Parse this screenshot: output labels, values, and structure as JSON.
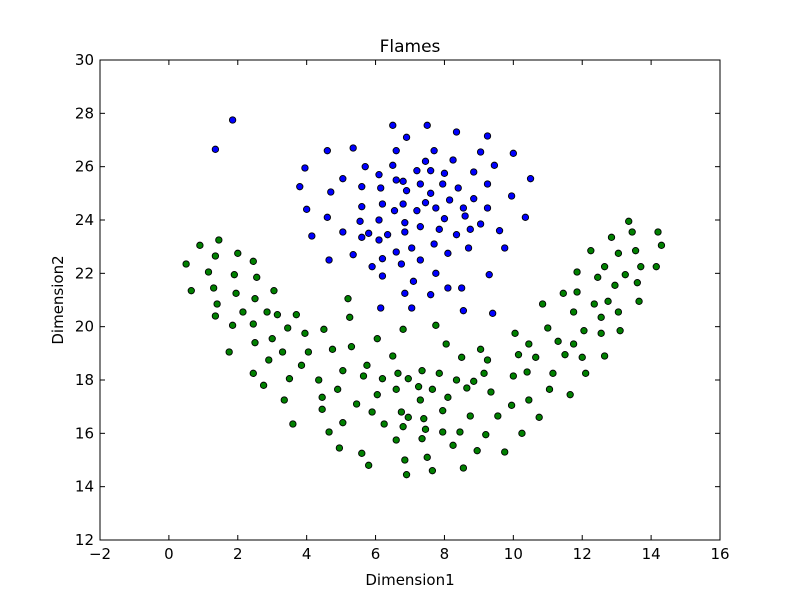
{
  "chart_data": {
    "type": "scatter",
    "title": "Flames",
    "xlabel": "Dimension1",
    "ylabel": "Dimension2",
    "xlim": [
      -2,
      16
    ],
    "ylim": [
      12,
      30
    ],
    "xticks": [
      "−2",
      "0",
      "2",
      "4",
      "6",
      "8",
      "10",
      "12",
      "14",
      "16"
    ],
    "yticks": [
      "12",
      "14",
      "16",
      "18",
      "20",
      "22",
      "24",
      "26",
      "28",
      "30"
    ],
    "grid": false,
    "series": [
      {
        "color": "#0000ff",
        "points": [
          [
            1.85,
            27.75
          ],
          [
            1.35,
            26.65
          ],
          [
            6.5,
            27.55
          ],
          [
            7.5,
            27.55
          ],
          [
            8.35,
            27.3
          ],
          [
            6.9,
            27.1
          ],
          [
            9.25,
            27.15
          ],
          [
            4.6,
            26.6
          ],
          [
            5.35,
            26.7
          ],
          [
            6.6,
            26.6
          ],
          [
            7.7,
            26.6
          ],
          [
            9.05,
            26.55
          ],
          [
            10.0,
            26.5
          ],
          [
            3.95,
            25.95
          ],
          [
            5.7,
            26.0
          ],
          [
            6.5,
            26.05
          ],
          [
            7.45,
            26.2
          ],
          [
            8.25,
            26.25
          ],
          [
            9.45,
            26.05
          ],
          [
            6.1,
            25.7
          ],
          [
            6.8,
            25.45
          ],
          [
            7.2,
            25.85
          ],
          [
            7.6,
            25.85
          ],
          [
            8.0,
            25.75
          ],
          [
            8.85,
            25.8
          ],
          [
            10.5,
            25.55
          ],
          [
            3.8,
            25.25
          ],
          [
            4.7,
            25.05
          ],
          [
            5.05,
            25.55
          ],
          [
            5.6,
            25.25
          ],
          [
            6.15,
            25.2
          ],
          [
            6.6,
            25.5
          ],
          [
            6.9,
            25.1
          ],
          [
            7.3,
            25.35
          ],
          [
            7.6,
            25.0
          ],
          [
            7.95,
            25.35
          ],
          [
            8.4,
            25.2
          ],
          [
            9.25,
            25.35
          ],
          [
            9.95,
            24.9
          ],
          [
            4.0,
            24.4
          ],
          [
            4.6,
            24.1
          ],
          [
            5.6,
            24.5
          ],
          [
            6.2,
            24.6
          ],
          [
            6.55,
            24.35
          ],
          [
            6.8,
            24.6
          ],
          [
            7.45,
            24.65
          ],
          [
            7.2,
            24.35
          ],
          [
            7.75,
            24.45
          ],
          [
            8.15,
            24.75
          ],
          [
            8.55,
            24.45
          ],
          [
            8.85,
            24.8
          ],
          [
            9.25,
            24.45
          ],
          [
            10.35,
            24.1
          ],
          [
            5.55,
            23.95
          ],
          [
            6.1,
            24.0
          ],
          [
            6.85,
            23.9
          ],
          [
            7.3,
            23.75
          ],
          [
            8.0,
            24.05
          ],
          [
            8.6,
            24.15
          ],
          [
            9.05,
            23.85
          ],
          [
            9.6,
            23.6
          ],
          [
            5.05,
            23.55
          ],
          [
            5.8,
            23.5
          ],
          [
            6.35,
            23.45
          ],
          [
            6.85,
            23.55
          ],
          [
            7.85,
            23.65
          ],
          [
            8.35,
            23.45
          ],
          [
            8.75,
            23.65
          ],
          [
            4.15,
            23.4
          ],
          [
            5.6,
            23.35
          ],
          [
            6.1,
            23.25
          ],
          [
            7.05,
            22.95
          ],
          [
            7.7,
            23.1
          ],
          [
            8.7,
            22.95
          ],
          [
            9.75,
            22.95
          ],
          [
            5.35,
            22.7
          ],
          [
            6.2,
            22.55
          ],
          [
            6.6,
            22.8
          ],
          [
            7.3,
            22.5
          ],
          [
            8.1,
            22.75
          ],
          [
            4.65,
            22.5
          ],
          [
            5.9,
            22.25
          ],
          [
            6.75,
            22.35
          ],
          [
            7.75,
            22.0
          ],
          [
            9.3,
            21.95
          ],
          [
            6.2,
            21.9
          ],
          [
            7.1,
            21.7
          ],
          [
            8.1,
            21.45
          ],
          [
            6.85,
            21.25
          ],
          [
            7.6,
            21.2
          ],
          [
            8.5,
            21.45
          ],
          [
            6.15,
            20.7
          ],
          [
            7.05,
            20.7
          ],
          [
            8.55,
            20.6
          ],
          [
            9.4,
            20.5
          ]
        ]
      },
      {
        "color": "#008000",
        "points": [
          [
            0.5,
            22.35
          ],
          [
            0.65,
            21.35
          ],
          [
            0.9,
            23.05
          ],
          [
            1.15,
            22.05
          ],
          [
            1.3,
            21.45
          ],
          [
            1.35,
            20.4
          ],
          [
            1.4,
            20.85
          ],
          [
            1.45,
            23.25
          ],
          [
            1.35,
            22.65
          ],
          [
            1.75,
            19.05
          ],
          [
            1.85,
            20.05
          ],
          [
            1.9,
            21.95
          ],
          [
            1.95,
            21.25
          ],
          [
            2.0,
            22.75
          ],
          [
            2.15,
            20.55
          ],
          [
            2.45,
            22.45
          ],
          [
            2.55,
            21.85
          ],
          [
            2.5,
            21.05
          ],
          [
            2.45,
            20.1
          ],
          [
            2.5,
            19.4
          ],
          [
            2.45,
            18.25
          ],
          [
            2.75,
            17.8
          ],
          [
            2.85,
            20.55
          ],
          [
            2.9,
            18.75
          ],
          [
            3.0,
            19.55
          ],
          [
            3.05,
            21.35
          ],
          [
            3.15,
            20.45
          ],
          [
            3.3,
            19.05
          ],
          [
            3.35,
            17.25
          ],
          [
            3.5,
            18.05
          ],
          [
            3.45,
            19.95
          ],
          [
            3.6,
            16.35
          ],
          [
            3.7,
            20.45
          ],
          [
            3.85,
            18.55
          ],
          [
            3.95,
            19.75
          ],
          [
            4.05,
            19.05
          ],
          [
            4.35,
            18.0
          ],
          [
            4.45,
            17.35
          ],
          [
            4.45,
            16.9
          ],
          [
            4.5,
            19.9
          ],
          [
            4.65,
            16.05
          ],
          [
            4.75,
            19.15
          ],
          [
            4.9,
            17.65
          ],
          [
            5.05,
            18.35
          ],
          [
            5.05,
            16.4
          ],
          [
            4.95,
            15.45
          ],
          [
            5.2,
            21.05
          ],
          [
            5.25,
            20.35
          ],
          [
            5.3,
            19.25
          ],
          [
            5.45,
            17.1
          ],
          [
            5.6,
            15.25
          ],
          [
            5.65,
            18.15
          ],
          [
            5.75,
            18.55
          ],
          [
            5.8,
            14.8
          ],
          [
            5.9,
            16.8
          ],
          [
            6.05,
            19.55
          ],
          [
            6.05,
            17.45
          ],
          [
            6.2,
            18.05
          ],
          [
            6.25,
            16.35
          ],
          [
            6.5,
            18.9
          ],
          [
            6.6,
            17.65
          ],
          [
            6.6,
            15.75
          ],
          [
            6.65,
            18.25
          ],
          [
            6.75,
            16.8
          ],
          [
            6.8,
            16.25
          ],
          [
            6.8,
            19.9
          ],
          [
            6.85,
            15.0
          ],
          [
            6.95,
            18.05
          ],
          [
            6.95,
            16.6
          ],
          [
            6.9,
            14.45
          ],
          [
            7.25,
            17.75
          ],
          [
            7.3,
            17.25
          ],
          [
            7.35,
            18.35
          ],
          [
            7.4,
            16.55
          ],
          [
            7.45,
            16.15
          ],
          [
            7.35,
            15.8
          ],
          [
            7.5,
            15.1
          ],
          [
            7.65,
            17.65
          ],
          [
            7.65,
            14.6
          ],
          [
            7.75,
            20.05
          ],
          [
            7.85,
            18.25
          ],
          [
            7.95,
            16.85
          ],
          [
            7.95,
            16.05
          ],
          [
            8.05,
            19.35
          ],
          [
            8.1,
            17.35
          ],
          [
            8.35,
            18.0
          ],
          [
            8.25,
            15.55
          ],
          [
            8.45,
            16.05
          ],
          [
            8.5,
            18.85
          ],
          [
            8.55,
            14.7
          ],
          [
            8.65,
            17.7
          ],
          [
            8.75,
            16.65
          ],
          [
            8.85,
            17.95
          ],
          [
            8.95,
            15.35
          ],
          [
            9.05,
            19.15
          ],
          [
            9.15,
            18.25
          ],
          [
            9.2,
            15.95
          ],
          [
            9.25,
            18.75
          ],
          [
            9.35,
            17.55
          ],
          [
            9.55,
            16.65
          ],
          [
            9.75,
            15.3
          ],
          [
            9.95,
            17.05
          ],
          [
            10.0,
            18.15
          ],
          [
            10.05,
            19.75
          ],
          [
            10.15,
            18.95
          ],
          [
            10.25,
            16.0
          ],
          [
            10.4,
            18.3
          ],
          [
            10.45,
            17.25
          ],
          [
            10.45,
            19.35
          ],
          [
            10.65,
            18.85
          ],
          [
            10.75,
            16.6
          ],
          [
            10.85,
            20.85
          ],
          [
            11.0,
            19.95
          ],
          [
            11.05,
            17.65
          ],
          [
            11.15,
            18.25
          ],
          [
            11.3,
            19.45
          ],
          [
            11.45,
            21.25
          ],
          [
            11.5,
            18.95
          ],
          [
            11.65,
            17.45
          ],
          [
            11.75,
            19.35
          ],
          [
            11.75,
            20.55
          ],
          [
            11.85,
            22.05
          ],
          [
            11.85,
            21.3
          ],
          [
            12.0,
            18.85
          ],
          [
            12.05,
            19.85
          ],
          [
            12.1,
            18.25
          ],
          [
            12.25,
            22.85
          ],
          [
            12.35,
            20.85
          ],
          [
            12.45,
            21.85
          ],
          [
            12.55,
            20.35
          ],
          [
            12.55,
            19.75
          ],
          [
            12.65,
            22.25
          ],
          [
            12.75,
            20.95
          ],
          [
            12.65,
            18.9
          ],
          [
            12.85,
            23.35
          ],
          [
            12.95,
            21.55
          ],
          [
            13.05,
            22.75
          ],
          [
            13.05,
            20.55
          ],
          [
            13.1,
            19.85
          ],
          [
            13.25,
            21.95
          ],
          [
            13.35,
            23.95
          ],
          [
            13.45,
            23.55
          ],
          [
            13.55,
            22.85
          ],
          [
            13.6,
            21.65
          ],
          [
            13.65,
            20.95
          ],
          [
            13.7,
            22.25
          ],
          [
            14.15,
            22.25
          ],
          [
            14.2,
            23.55
          ],
          [
            14.3,
            23.05
          ]
        ]
      }
    ]
  }
}
